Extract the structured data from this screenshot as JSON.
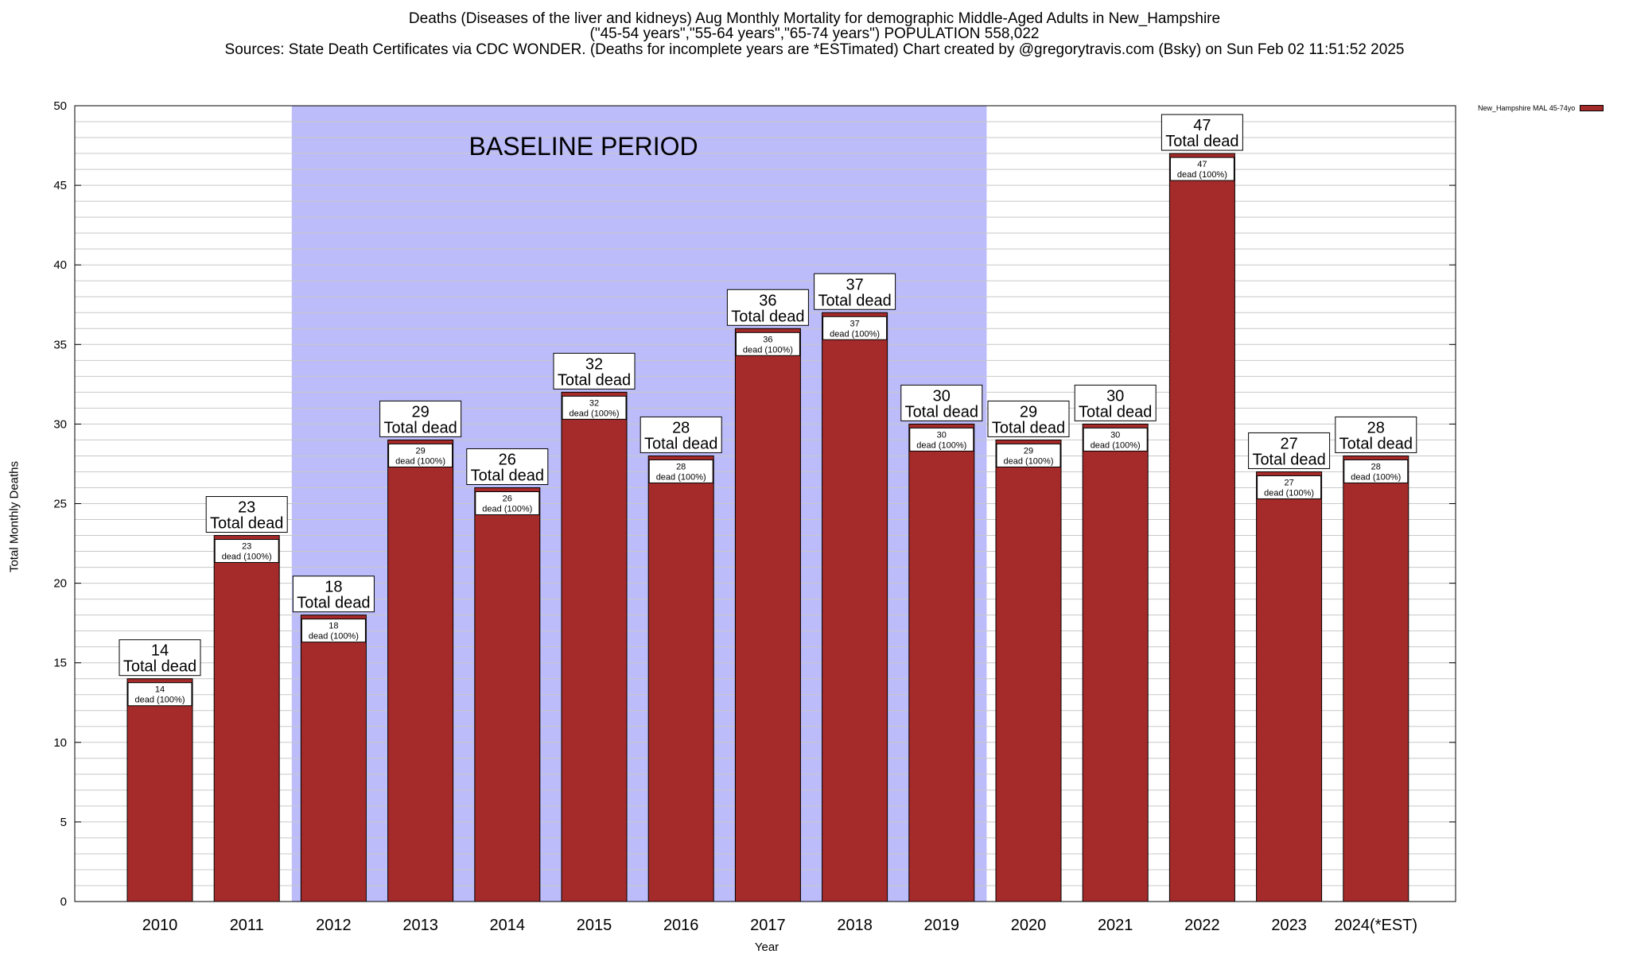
{
  "title": {
    "line1": "Deaths (Diseases of the liver and kidneys) Aug Monthly Mortality for demographic Middle-Aged Adults in New_Hampshire",
    "line2": "(\"45-54 years\",\"55-64 years\",\"65-74 years\") POPULATION 558,022",
    "line3": "Sources: State Death Certificates via CDC WONDER. (Deaths for incomplete years are *ESTimated)               Chart created by @gregorytravis.com (Bsky) on Sun Feb 02 11:51:52 2025"
  },
  "chart_data": {
    "type": "bar",
    "categories": [
      "2010",
      "2011",
      "2012",
      "2013",
      "2014",
      "2015",
      "2016",
      "2017",
      "2018",
      "2019",
      "2020",
      "2021",
      "2022",
      "2023",
      "2024(*EST)"
    ],
    "series": [
      {
        "name": "New_Hampshire MAL 45-74yo",
        "color": "#a52a2a",
        "values": [
          14,
          23,
          18,
          29,
          26,
          32,
          28,
          36,
          37,
          30,
          29,
          30,
          47,
          27,
          28
        ]
      }
    ],
    "top_label_suffix": "Total dead",
    "inner_label_suffix": "dead (100%)",
    "xlabel": "Year",
    "ylabel": "Total Monthly Deaths",
    "ylim": [
      0,
      50
    ],
    "yticks": [
      0,
      5,
      10,
      15,
      20,
      25,
      30,
      35,
      40,
      45,
      50
    ],
    "grid": true,
    "legend_position": "top-right, outside plot",
    "baseline": {
      "label": "BASELINE PERIOD",
      "start": "2012",
      "end": "2019",
      "color": "#bcbcfa"
    }
  }
}
